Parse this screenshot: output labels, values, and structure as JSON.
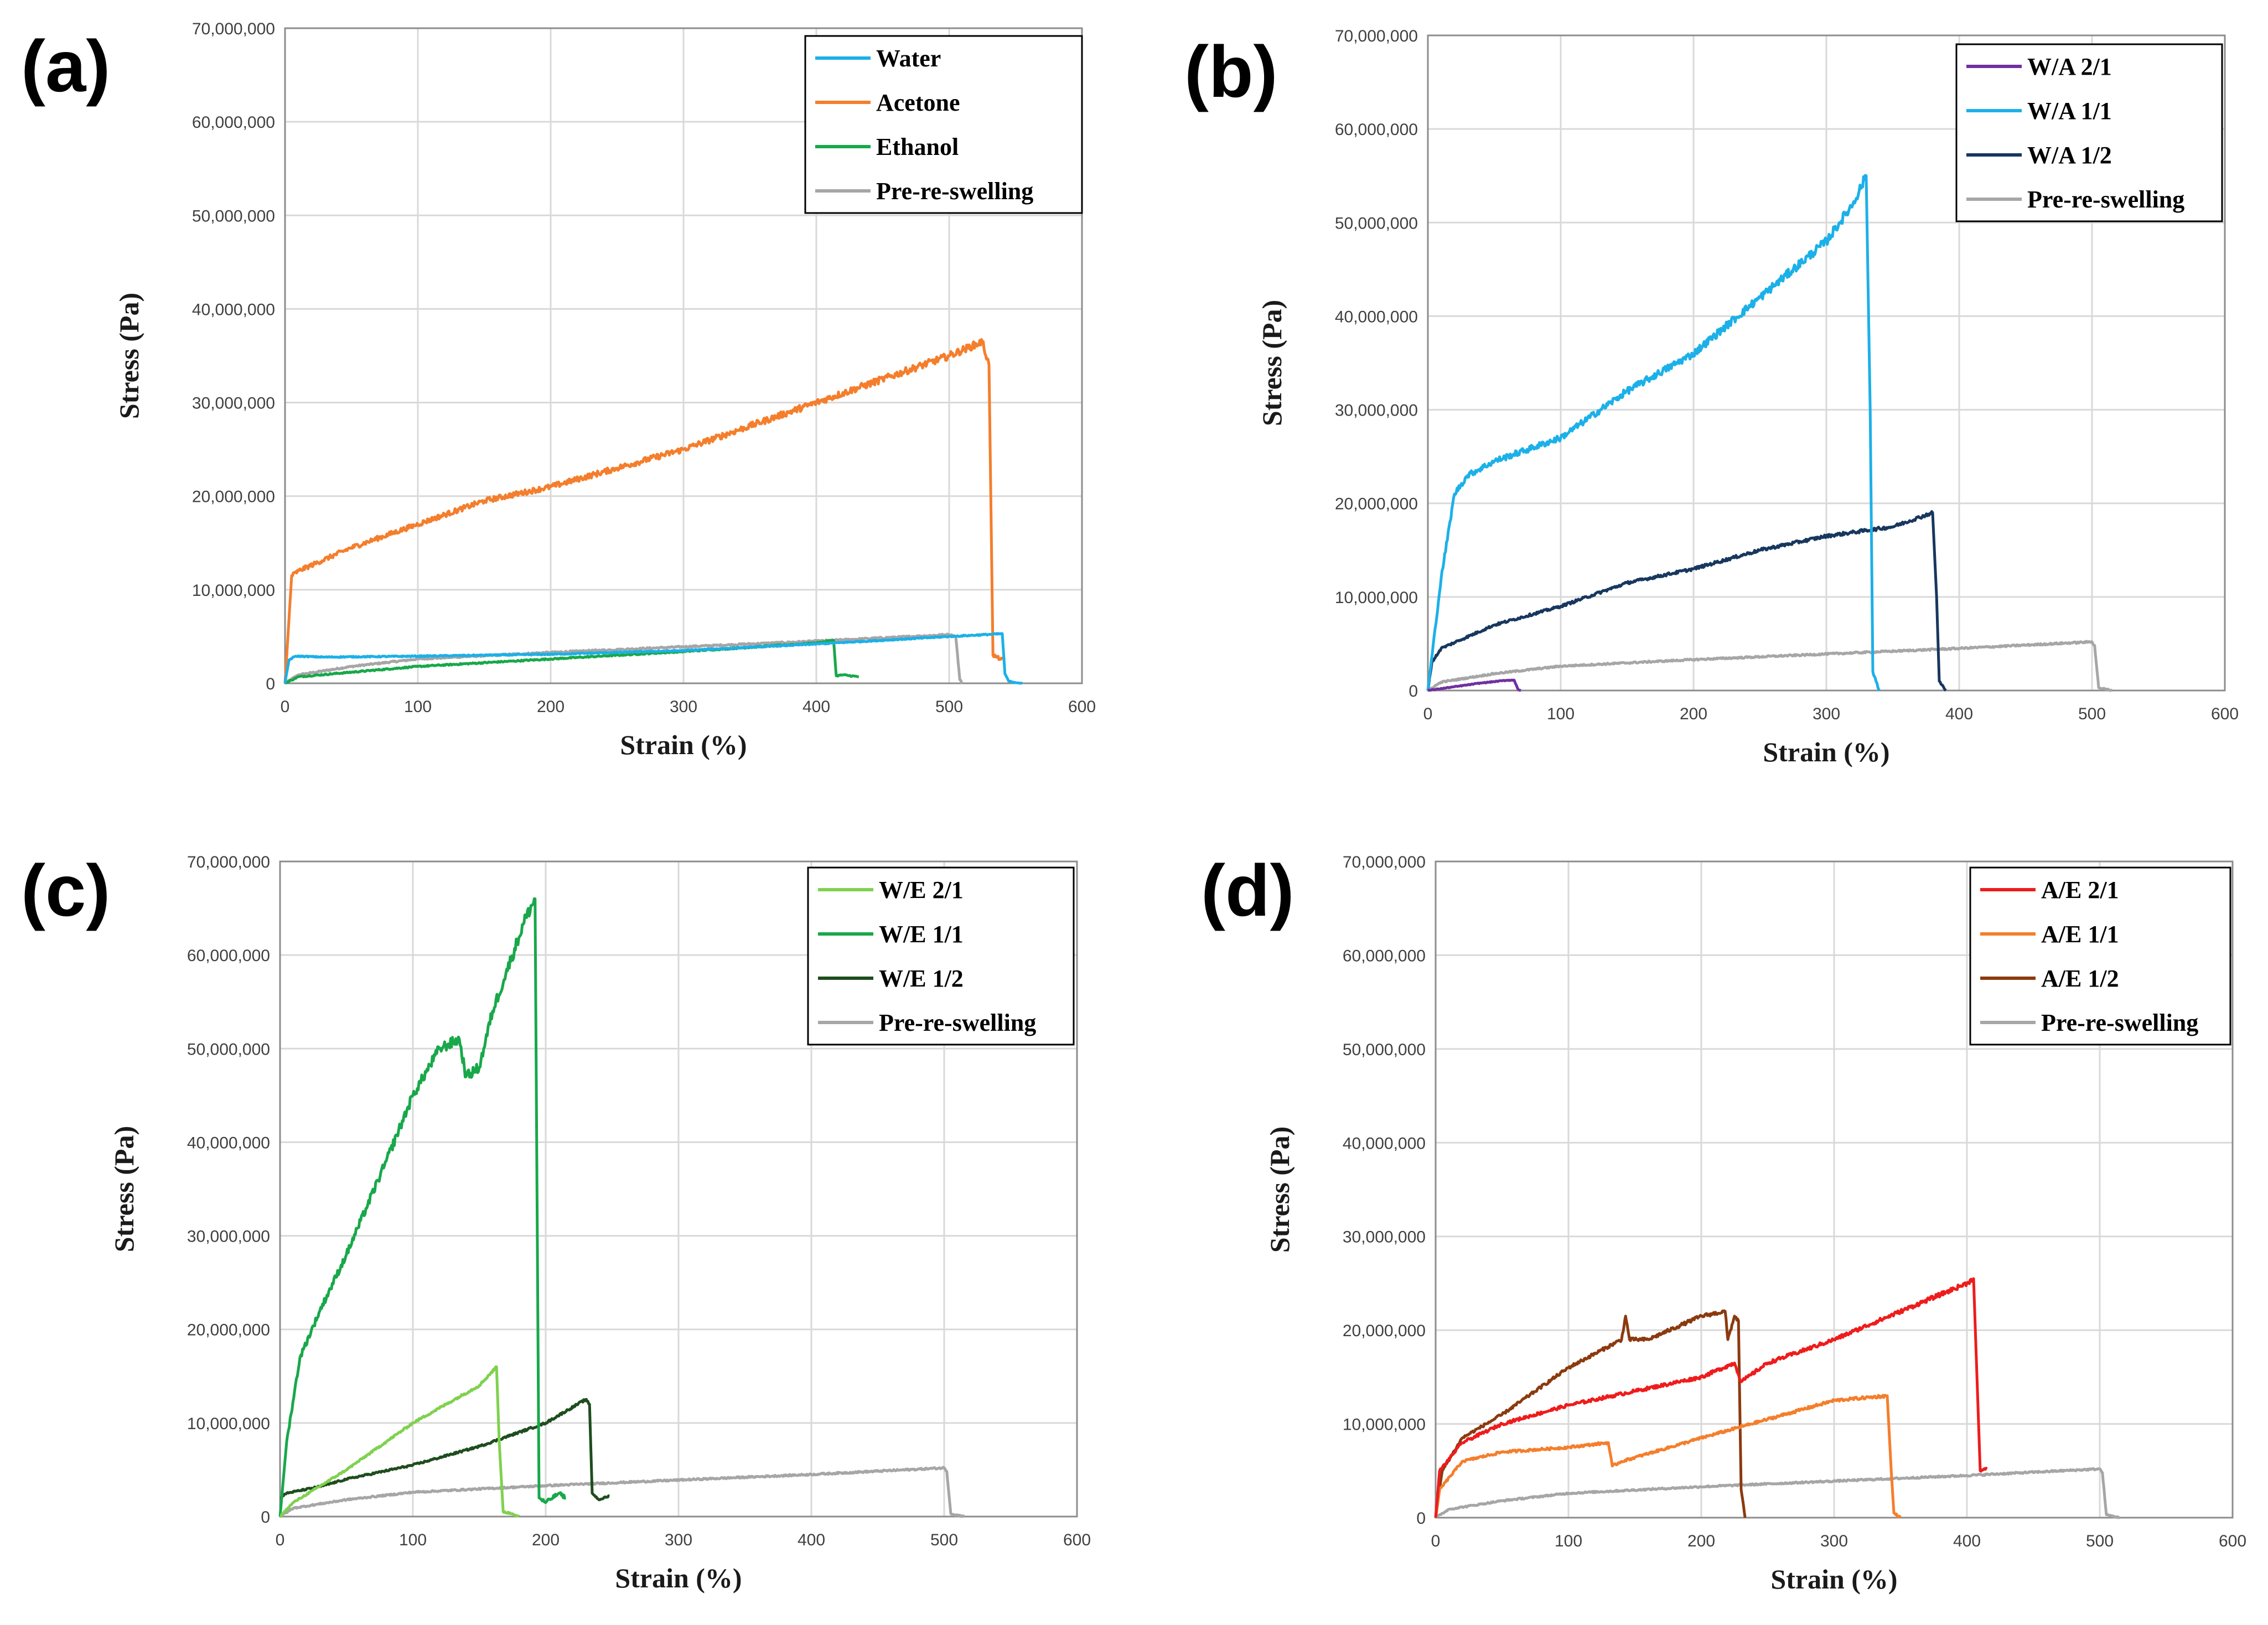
{
  "chart_data": [
    {
      "panel": "(a)",
      "type": "line",
      "xlabel": "Strain (%)",
      "ylabel": "Stress (Pa)",
      "xlim": [
        0,
        600
      ],
      "ylim": [
        0,
        70000000
      ],
      "xticks": [
        "0",
        "100",
        "200",
        "300",
        "400",
        "500",
        "600"
      ],
      "yticks": [
        "0",
        "10,000,000",
        "20,000,000",
        "30,000,000",
        "40,000,000",
        "50,000,000",
        "60,000,000",
        "70,000,000"
      ],
      "legend_position": "top-right",
      "series": [
        {
          "name": "Water",
          "color": "#1cb0e8",
          "noise": 0.25,
          "x": [
            0,
            3,
            8,
            30,
            100,
            200,
            300,
            400,
            500,
            540,
            542,
            545,
            555
          ],
          "y": [
            0,
            2500000,
            2900000,
            2800000,
            2900000,
            3100000,
            3500000,
            4200000,
            5000000,
            5300000,
            1000000,
            200000,
            0
          ]
        },
        {
          "name": "Acetone",
          "color": "#f47e2c",
          "noise": 0.7,
          "x": [
            0,
            5,
            10,
            50,
            100,
            150,
            200,
            250,
            300,
            350,
            400,
            450,
            500,
            525,
            530,
            533,
            540
          ],
          "y": [
            0,
            11500000,
            12000000,
            14500000,
            17000000,
            19500000,
            21000000,
            23000000,
            25000000,
            27500000,
            30000000,
            32500000,
            35000000,
            36500000,
            34000000,
            3000000,
            2500000
          ]
        },
        {
          "name": "Ethanol",
          "color": "#18a84a",
          "noise": 0.3,
          "x": [
            0,
            10,
            100,
            200,
            300,
            400,
            413,
            415,
            420,
            432
          ],
          "y": [
            0,
            700000,
            1800000,
            2600000,
            3400000,
            4300000,
            4600000,
            800000,
            900000,
            700000
          ]
        },
        {
          "name": "Pre-re-swelling",
          "color": "#a6a6a6",
          "noise": 0.35,
          "x": [
            0,
            10,
            50,
            100,
            200,
            300,
            400,
            500,
            505,
            508,
            510
          ],
          "y": [
            0,
            900000,
            1800000,
            2600000,
            3300000,
            3900000,
            4500000,
            5200000,
            5000000,
            400000,
            0
          ]
        }
      ]
    },
    {
      "panel": "(b)",
      "type": "line",
      "xlabel": "Strain (%)",
      "ylabel": "Stress (Pa)",
      "xlim": [
        0,
        600
      ],
      "ylim": [
        0,
        70000000
      ],
      "xticks": [
        "0",
        "100",
        "200",
        "300",
        "400",
        "500",
        "600"
      ],
      "yticks": [
        "0",
        "10,000,000",
        "20,000,000",
        "30,000,000",
        "40,000,000",
        "50,000,000",
        "60,000,000",
        "70,000,000"
      ],
      "legend_position": "top-right",
      "series": [
        {
          "name": "W/A 2/1",
          "color": "#7030a0",
          "noise": 0.2,
          "x": [
            0,
            20,
            40,
            60,
            65,
            68,
            70
          ],
          "y": [
            0,
            400000,
            800000,
            1100000,
            1100000,
            100000,
            0
          ]
        },
        {
          "name": "W/A 1/1",
          "color": "#1cb0e8",
          "noise": 0.7,
          "x": [
            0,
            10,
            20,
            30,
            50,
            100,
            150,
            200,
            250,
            300,
            320,
            330,
            333,
            335,
            340
          ],
          "y": [
            0,
            12000000,
            21000000,
            23000000,
            24500000,
            27000000,
            32000000,
            36000000,
            42000000,
            48000000,
            52000000,
            55000000,
            30000000,
            2000000,
            0
          ]
        },
        {
          "name": "W/A 1/2",
          "color": "#17375e",
          "noise": 0.45,
          "x": [
            0,
            3,
            10,
            50,
            100,
            150,
            200,
            250,
            300,
            350,
            380,
            383,
            385,
            390
          ],
          "y": [
            0,
            3000000,
            4500000,
            7000000,
            9000000,
            11500000,
            13000000,
            15000000,
            16500000,
            17500000,
            19000000,
            10000000,
            1000000,
            0
          ]
        },
        {
          "name": "Pre-re-swelling",
          "color": "#a6a6a6",
          "noise": 0.35,
          "x": [
            0,
            10,
            50,
            100,
            200,
            300,
            400,
            500,
            502,
            505,
            515
          ],
          "y": [
            0,
            900000,
            1800000,
            2600000,
            3300000,
            3900000,
            4500000,
            5200000,
            4800000,
            300000,
            0
          ]
        }
      ]
    },
    {
      "panel": "(c)",
      "type": "line",
      "xlabel": "Strain (%)",
      "ylabel": "Stress (Pa)",
      "xlim": [
        0,
        600
      ],
      "ylim": [
        0,
        70000000
      ],
      "xticks": [
        "0",
        "100",
        "200",
        "300",
        "400",
        "500",
        "600"
      ],
      "yticks": [
        "0",
        "10,000,000",
        "20,000,000",
        "30,000,000",
        "40,000,000",
        "50,000,000",
        "60,000,000",
        "70,000,000"
      ],
      "legend_position": "top-right",
      "series": [
        {
          "name": "W/E 2/1",
          "color": "#7fd14f",
          "noise": 0.35,
          "x": [
            0,
            10,
            50,
            100,
            150,
            163,
            165,
            168,
            175,
            180
          ],
          "y": [
            0,
            1500000,
            5000000,
            10000000,
            14000000,
            16000000,
            8000000,
            500000,
            300000,
            0
          ]
        },
        {
          "name": "W/E 1/1",
          "color": "#18a84a",
          "noise": 0.8,
          "x": [
            0,
            5,
            15,
            30,
            50,
            80,
            100,
            120,
            135,
            140,
            150,
            160,
            170,
            185,
            192,
            195,
            200,
            210,
            215
          ],
          "y": [
            0,
            8000000,
            17000000,
            22000000,
            28000000,
            38000000,
            45000000,
            50000000,
            51000000,
            47000000,
            48000000,
            54000000,
            58000000,
            64000000,
            66000000,
            2000000,
            1500000,
            2500000,
            2000000
          ]
        },
        {
          "name": "W/E 1/2",
          "color": "#1e4d1e",
          "noise": 0.35,
          "x": [
            0,
            5,
            30,
            50,
            100,
            150,
            200,
            230,
            233,
            235,
            240,
            248
          ],
          "y": [
            2000000,
            2500000,
            3200000,
            4000000,
            5500000,
            7500000,
            10000000,
            12500000,
            12000000,
            2500000,
            1800000,
            2200000
          ]
        },
        {
          "name": "Pre-re-swelling",
          "color": "#a6a6a6",
          "noise": 0.35,
          "x": [
            0,
            10,
            50,
            100,
            200,
            300,
            400,
            500,
            502,
            505,
            515
          ],
          "y": [
            0,
            900000,
            1800000,
            2600000,
            3300000,
            3900000,
            4500000,
            5200000,
            4800000,
            300000,
            0
          ]
        }
      ]
    },
    {
      "panel": "(d)",
      "type": "line",
      "xlabel": "Strain (%)",
      "ylabel": "Stress (Pa)",
      "xlim": [
        0,
        600
      ],
      "ylim": [
        0,
        70000000
      ],
      "xticks": [
        "0",
        "100",
        "200",
        "300",
        "400",
        "500",
        "600"
      ],
      "yticks": [
        "0",
        "10,000,000",
        "20,000,000",
        "30,000,000",
        "40,000,000",
        "50,000,000",
        "60,000,000",
        "70,000,000"
      ],
      "legend_position": "top-right",
      "series": [
        {
          "name": "A/E 2/1",
          "color": "#ee1c1c",
          "noise": 0.5,
          "x": [
            0,
            3,
            20,
            50,
            100,
            150,
            200,
            225,
            230,
            235,
            250,
            300,
            350,
            400,
            405,
            410,
            415
          ],
          "y": [
            0,
            5000000,
            8000000,
            10000000,
            12000000,
            13500000,
            15000000,
            16500000,
            14500000,
            15000000,
            16500000,
            19000000,
            22000000,
            25000000,
            25500000,
            5000000,
            5200000
          ]
        },
        {
          "name": "A/E 1/1",
          "color": "#f47e2c",
          "noise": 0.45,
          "x": [
            0,
            3,
            20,
            50,
            100,
            130,
            133,
            140,
            200,
            250,
            300,
            340,
            343,
            345,
            350
          ],
          "y": [
            0,
            3000000,
            6000000,
            7000000,
            7500000,
            8000000,
            5500000,
            6000000,
            8500000,
            10500000,
            12500000,
            13000000,
            5000000,
            500000,
            0
          ]
        },
        {
          "name": "A/E 1/2",
          "color": "#8b3a0f",
          "noise": 0.45,
          "x": [
            0,
            5,
            20,
            50,
            100,
            140,
            143,
            146,
            150,
            160,
            200,
            218,
            220,
            225,
            228,
            230,
            233
          ],
          "y": [
            0,
            5000000,
            8500000,
            11000000,
            16000000,
            19000000,
            21500000,
            19000000,
            19000000,
            19000000,
            21500000,
            22000000,
            19000000,
            21500000,
            21000000,
            3000000,
            0
          ]
        },
        {
          "name": "Pre-re-swelling",
          "color": "#a6a6a6",
          "noise": 0.35,
          "x": [
            0,
            10,
            50,
            100,
            200,
            300,
            400,
            500,
            502,
            505,
            515
          ],
          "y": [
            0,
            900000,
            1800000,
            2600000,
            3300000,
            3900000,
            4500000,
            5200000,
            4800000,
            300000,
            0
          ]
        }
      ]
    }
  ]
}
